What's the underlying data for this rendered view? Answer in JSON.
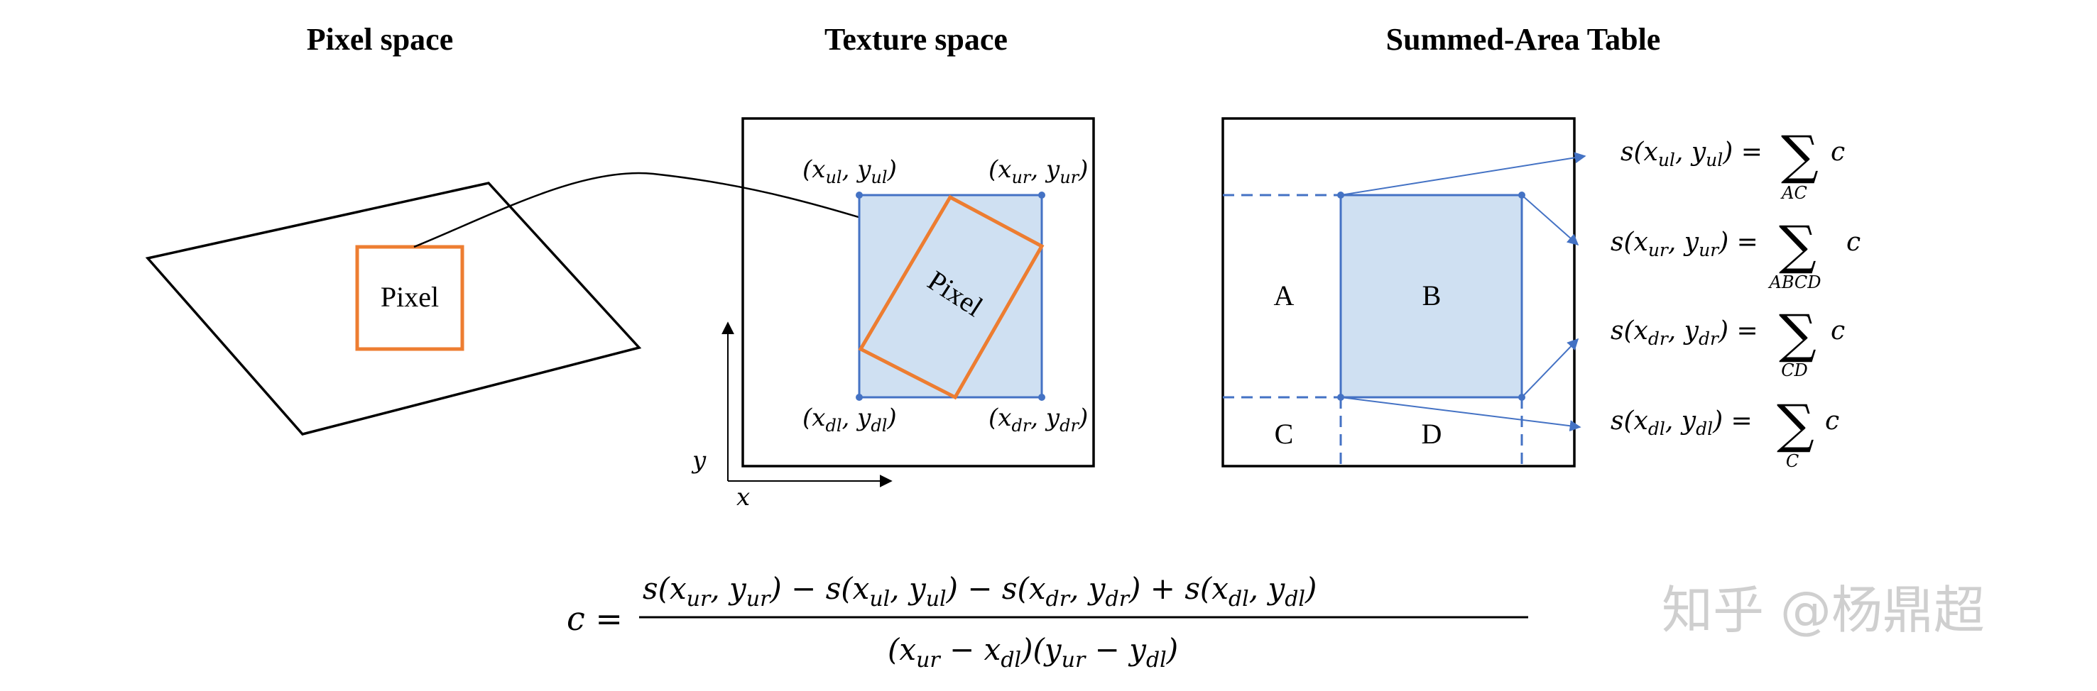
{
  "titles": {
    "pixel_space": "Pixel space",
    "texture_space": "Texture space",
    "sat": "Summed-Area Table"
  },
  "pixel_label": "Pixel",
  "texture": {
    "corner_ul": "(xᵤₗ, yᵤₗ)",
    "corner_ur": "(xᵤᵣ, yᵤᵣ)",
    "corner_dl": "(x_dl, y_dl)",
    "corner_dr": "(x_dr, y_dr)",
    "axis_x": "x",
    "axis_y": "y"
  },
  "sat_regions": {
    "a": "A",
    "b": "B",
    "c": "C",
    "d": "D"
  },
  "sums": [
    {
      "lhs": "s(x",
      "sub1": "ul",
      "mid": ", y",
      "sub2": "ul",
      "rhs": ") =",
      "sum": "∑",
      "index": "AC",
      "term": "c"
    },
    {
      "lhs": "s(x",
      "sub1": "ur",
      "mid": ", y",
      "sub2": "ur",
      "rhs": ") =",
      "sum": "∑",
      "index": "ABCD",
      "term": "c"
    },
    {
      "lhs": "s(x",
      "sub1": "dr",
      "mid": ", y",
      "sub2": "dr",
      "rhs": ") =",
      "sum": "∑",
      "index": "CD",
      "term": "c"
    },
    {
      "lhs": "s(x",
      "sub1": "dl",
      "mid": ", y",
      "sub2": "dl",
      "rhs": ") =",
      "sum": "∑",
      "index": "C",
      "term": "c"
    }
  ],
  "formula": {
    "lhs": "c =",
    "numerator": "s(x_ur, y_ur) − s(x_ul, y_ul) − s(x_dr, y_dr) + s(x_dl, y_dl)",
    "denominator": "(x_ur − x_dl)(y_ur − y_dl)"
  },
  "watermark": "知乎 @杨鼎超",
  "colors": {
    "orange": "#ED7D31",
    "blue": "#4472C4",
    "light_blue": "#CFE0F2"
  }
}
